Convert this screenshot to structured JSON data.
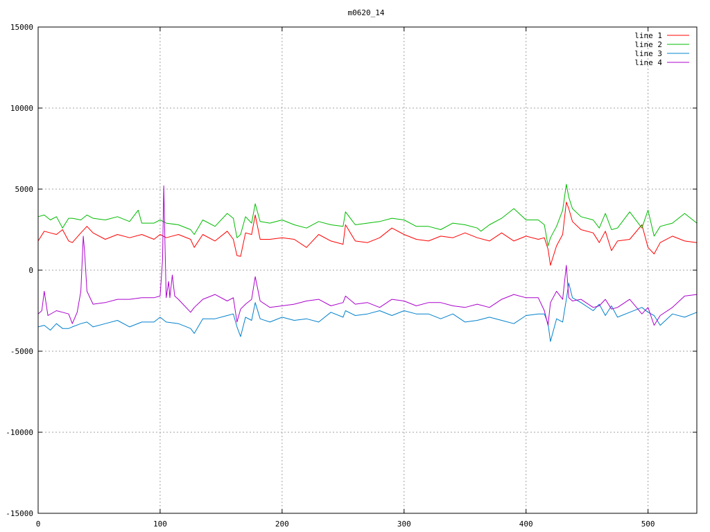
{
  "chart_data": {
    "type": "line",
    "title": "m0620_14",
    "xlabel": "",
    "ylabel": "",
    "xlim": [
      0,
      540
    ],
    "ylim": [
      -15000,
      15000
    ],
    "x_ticks": [
      "0",
      "100",
      "200",
      "300",
      "400",
      "500"
    ],
    "y_ticks": [
      "-15000",
      "-10000",
      "-5000",
      "0",
      "5000",
      "10000",
      "15000"
    ],
    "grid": true,
    "legend_position": "top-right",
    "series": [
      {
        "name": "line 1",
        "color": "#ff0000",
        "x": [
          0,
          5,
          10,
          15,
          20,
          25,
          28,
          35,
          40,
          45,
          55,
          65,
          75,
          85,
          95,
          100,
          105,
          115,
          125,
          128,
          135,
          145,
          155,
          160,
          163,
          166,
          170,
          175,
          178,
          182,
          190,
          200,
          210,
          220,
          230,
          240,
          250,
          252,
          260,
          270,
          280,
          290,
          300,
          310,
          320,
          330,
          340,
          350,
          360,
          370,
          380,
          390,
          400,
          410,
          415,
          418,
          420,
          425,
          430,
          433,
          435,
          438,
          445,
          455,
          460,
          465,
          470,
          475,
          485,
          495,
          500,
          505,
          510,
          520,
          530,
          540
        ],
        "y": [
          1800,
          2400,
          2300,
          2200,
          2500,
          1800,
          1700,
          2300,
          2700,
          2300,
          1900,
          2200,
          2000,
          2200,
          1900,
          2200,
          2000,
          2200,
          1900,
          1400,
          2200,
          1800,
          2400,
          1900,
          900,
          850,
          2300,
          2200,
          3400,
          1900,
          1900,
          2000,
          1900,
          1400,
          2200,
          1800,
          1600,
          2800,
          1800,
          1700,
          2000,
          2600,
          2200,
          1900,
          1800,
          2100,
          2000,
          2300,
          2000,
          1800,
          2300,
          1800,
          2100,
          1900,
          2000,
          1300,
          300,
          1500,
          2200,
          4200,
          3800,
          3000,
          2500,
          2300,
          1700,
          2400,
          1200,
          1800,
          1900,
          2800,
          1400,
          1000,
          1700,
          2100,
          1800,
          1700
        ]
      },
      {
        "name": "line 2",
        "color": "#00bb00",
        "x": [
          0,
          5,
          10,
          15,
          20,
          25,
          28,
          35,
          40,
          45,
          55,
          65,
          75,
          82,
          85,
          95,
          100,
          105,
          115,
          125,
          128,
          135,
          145,
          155,
          160,
          163,
          166,
          170,
          175,
          178,
          182,
          190,
          200,
          210,
          220,
          230,
          240,
          250,
          252,
          260,
          270,
          280,
          290,
          300,
          310,
          320,
          330,
          340,
          350,
          360,
          363,
          370,
          380,
          390,
          400,
          410,
          415,
          418,
          420,
          425,
          430,
          433,
          435,
          438,
          445,
          455,
          460,
          465,
          470,
          475,
          485,
          495,
          500,
          505,
          510,
          520,
          530,
          540
        ],
        "y": [
          3300,
          3400,
          3100,
          3300,
          2600,
          3200,
          3200,
          3100,
          3400,
          3200,
          3100,
          3300,
          3000,
          3700,
          2900,
          2900,
          3100,
          2900,
          2800,
          2500,
          2200,
          3100,
          2700,
          3500,
          3200,
          2000,
          2200,
          3300,
          2900,
          4100,
          3000,
          2900,
          3100,
          2800,
          2600,
          3000,
          2800,
          2700,
          3600,
          2800,
          2900,
          3000,
          3200,
          3100,
          2700,
          2700,
          2500,
          2900,
          2800,
          2600,
          2400,
          2800,
          3200,
          3800,
          3100,
          3100,
          2800,
          1500,
          2000,
          2700,
          3700,
          5300,
          4500,
          3800,
          3300,
          3100,
          2600,
          3500,
          2500,
          2600,
          3600,
          2600,
          3700,
          2100,
          2700,
          2900,
          3500,
          2900
        ]
      },
      {
        "name": "line 3",
        "color": "#0080cc",
        "x": [
          0,
          5,
          10,
          15,
          20,
          25,
          28,
          35,
          40,
          45,
          55,
          65,
          75,
          85,
          95,
          100,
          105,
          115,
          125,
          128,
          135,
          145,
          155,
          160,
          163,
          166,
          170,
          175,
          178,
          182,
          190,
          200,
          210,
          220,
          230,
          240,
          250,
          252,
          260,
          270,
          280,
          290,
          300,
          310,
          320,
          330,
          340,
          350,
          360,
          370,
          380,
          390,
          400,
          410,
          415,
          418,
          420,
          425,
          430,
          433,
          435,
          438,
          445,
          455,
          460,
          465,
          470,
          475,
          485,
          495,
          500,
          505,
          510,
          520,
          530,
          540
        ],
        "y": [
          -3500,
          -3400,
          -3700,
          -3300,
          -3600,
          -3600,
          -3500,
          -3300,
          -3200,
          -3500,
          -3300,
          -3100,
          -3500,
          -3200,
          -3200,
          -2900,
          -3200,
          -3300,
          -3600,
          -3900,
          -3000,
          -3000,
          -2800,
          -2700,
          -3500,
          -4100,
          -2900,
          -3100,
          -2000,
          -3000,
          -3200,
          -2900,
          -3100,
          -3000,
          -3200,
          -2600,
          -2900,
          -2500,
          -2800,
          -2700,
          -2500,
          -2800,
          -2500,
          -2700,
          -2700,
          -3000,
          -2700,
          -3200,
          -3100,
          -2900,
          -3100,
          -3300,
          -2800,
          -2700,
          -2700,
          -3300,
          -4400,
          -3000,
          -3200,
          -1800,
          -800,
          -1700,
          -2000,
          -2500,
          -2100,
          -2800,
          -2200,
          -2900,
          -2600,
          -2300,
          -2600,
          -2800,
          -3400,
          -2700,
          -2900,
          -2600
        ]
      },
      {
        "name": "line 4",
        "color": "#aa00cc",
        "x": [
          0,
          3,
          5,
          8,
          15,
          20,
          25,
          28,
          32,
          35,
          37,
          38,
          40,
          45,
          55,
          65,
          75,
          85,
          95,
          100,
          102,
          103,
          104,
          105,
          107,
          108,
          110,
          112,
          115,
          125,
          128,
          135,
          145,
          155,
          160,
          163,
          166,
          170,
          175,
          178,
          182,
          190,
          200,
          210,
          220,
          230,
          240,
          250,
          252,
          260,
          270,
          280,
          290,
          300,
          310,
          320,
          330,
          340,
          350,
          360,
          370,
          380,
          390,
          400,
          410,
          415,
          418,
          420,
          425,
          430,
          433,
          435,
          438,
          445,
          455,
          460,
          465,
          470,
          475,
          485,
          495,
          500,
          505,
          510,
          520,
          530,
          540
        ],
        "y": [
          -2700,
          -2500,
          -1300,
          -2800,
          -2500,
          -2600,
          -2700,
          -3300,
          -2600,
          -1300,
          2100,
          1200,
          -1300,
          -2100,
          -2000,
          -1800,
          -1800,
          -1700,
          -1700,
          -1600,
          600,
          5200,
          1500,
          -1700,
          -700,
          -1700,
          -300,
          -1600,
          -1800,
          -2600,
          -2300,
          -1800,
          -1500,
          -1900,
          -1700,
          -3200,
          -2400,
          -2100,
          -1800,
          -400,
          -1900,
          -2300,
          -2200,
          -2100,
          -1900,
          -1800,
          -2200,
          -2000,
          -1600,
          -2100,
          -2000,
          -2300,
          -1800,
          -1900,
          -2200,
          -2000,
          -2000,
          -2200,
          -2300,
          -2100,
          -2300,
          -1800,
          -1500,
          -1700,
          -1700,
          -2500,
          -3400,
          -2000,
          -1300,
          -1800,
          300,
          -1700,
          -1900,
          -1800,
          -2300,
          -2200,
          -1800,
          -2400,
          -2300,
          -1800,
          -2700,
          -2300,
          -3400,
          -2800,
          -2300,
          -1600,
          -1500
        ]
      }
    ]
  }
}
